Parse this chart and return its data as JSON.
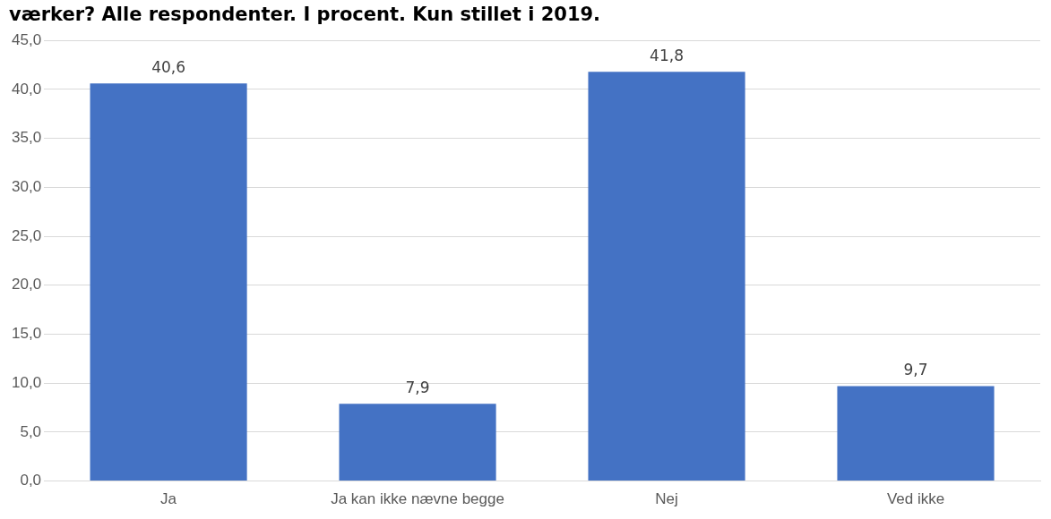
{
  "chart_data": {
    "type": "bar",
    "title": "værker? Alle respondenter. I procent. Kun stillet i 2019.",
    "categories": [
      "Ja",
      "Ja kan ikke nævne begge",
      "Nej",
      "Ved ikke"
    ],
    "values": [
      40.6,
      7.9,
      41.8,
      9.7
    ],
    "value_labels": [
      "40,6",
      "7,9",
      "41,8",
      "9,7"
    ],
    "color": "#4472c4",
    "ylim": [
      0,
      45
    ],
    "yticks": [
      {
        "value": 0,
        "label": "0,0"
      },
      {
        "value": 5,
        "label": "5,0"
      },
      {
        "value": 10,
        "label": "10,0"
      },
      {
        "value": 15,
        "label": "15,0"
      },
      {
        "value": 20,
        "label": "20,0"
      },
      {
        "value": 25,
        "label": "25,0"
      },
      {
        "value": 30,
        "label": "30,0"
      },
      {
        "value": 35,
        "label": "35,0"
      },
      {
        "value": 40,
        "label": "40,0"
      },
      {
        "value": 45,
        "label": "45,0"
      }
    ],
    "grid": "y"
  }
}
